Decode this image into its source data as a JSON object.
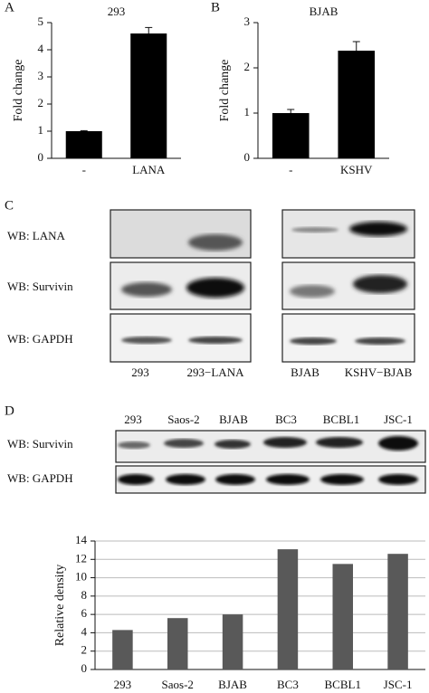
{
  "panels": [
    "A",
    "B",
    "C",
    "D"
  ],
  "chart_data": [
    {
      "type": "bar",
      "title": "293",
      "y_label": "Fold change",
      "categories": [
        "-",
        "LANA"
      ],
      "values": [
        1,
        4.6
      ],
      "errors": [
        0.02,
        0.22
      ],
      "color": "#000000",
      "ylim": [
        0,
        5
      ],
      "yticks": [
        0,
        1,
        2,
        3,
        4,
        5
      ],
      "grid": false
    },
    {
      "type": "bar",
      "title": "BJAB",
      "y_label": "Fold change",
      "categories": [
        "-",
        "KSHV"
      ],
      "values": [
        1,
        2.38
      ],
      "errors": [
        0.08,
        0.2
      ],
      "color": "#000000",
      "ylim": [
        0,
        3
      ],
      "yticks": [
        0,
        1,
        2,
        3
      ],
      "grid": false
    },
    {
      "type": "bar",
      "y_label": "Relative density",
      "categories": [
        "293",
        "Saos-2",
        "BJAB",
        "BC3",
        "BCBL1",
        "JSC-1"
      ],
      "values": [
        4.3,
        5.6,
        6.0,
        13.1,
        11.5,
        12.6
      ],
      "color": "#595959",
      "ylim": [
        0,
        14
      ],
      "yticks": [
        0,
        2,
        4,
        6,
        8,
        10,
        12,
        14
      ],
      "grid": true
    }
  ],
  "blots_c": {
    "rows": [
      "WB: LANA",
      "WB: Survivin",
      "WB: GAPDH"
    ],
    "lanes_left": [
      "293",
      "293−LANA"
    ],
    "lanes_right": [
      "BJAB",
      "KSHV−BJAB"
    ]
  },
  "blots_d": {
    "rows": [
      "WB: Survivin",
      "WB: GAPDH"
    ],
    "lanes": [
      "293",
      "Saos-2",
      "BJAB",
      "BC3",
      "BCBL1",
      "JSC-1"
    ]
  }
}
